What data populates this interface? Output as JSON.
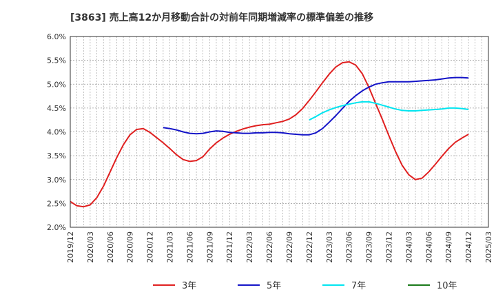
{
  "chart_data": {
    "type": "line",
    "title": "[3863]  売上高12か月移動合計の対前年同期増減率の標準偏差の推移",
    "xlabel": "",
    "ylabel": "",
    "ylim": [
      2.0,
      6.0
    ],
    "grid": true,
    "legend_position": "bottom",
    "y_ticks": [
      "2.0%",
      "2.5%",
      "3.0%",
      "3.5%",
      "4.0%",
      "4.5%",
      "5.0%",
      "5.5%",
      "6.0%"
    ],
    "x_ticks": [
      "2019/12",
      "2020/03",
      "2020/06",
      "2020/09",
      "2020/12",
      "2021/03",
      "2021/06",
      "2021/09",
      "2021/12",
      "2022/03",
      "2022/06",
      "2022/09",
      "2022/12",
      "2023/03",
      "2023/06",
      "2023/09",
      "2023/12",
      "2024/03",
      "2024/06",
      "2024/09",
      "2024/12",
      "2025/03"
    ],
    "series": [
      {
        "name": "3年",
        "color": "#e02020",
        "points": [
          [
            "2019/12",
            2.54
          ],
          [
            "2020/01",
            2.45
          ],
          [
            "2020/02",
            2.43
          ],
          [
            "2020/03",
            2.47
          ],
          [
            "2020/04",
            2.62
          ],
          [
            "2020/05",
            2.86
          ],
          [
            "2020/06",
            3.16
          ],
          [
            "2020/07",
            3.46
          ],
          [
            "2020/08",
            3.73
          ],
          [
            "2020/09",
            3.94
          ],
          [
            "2020/10",
            4.05
          ],
          [
            "2020/11",
            4.07
          ],
          [
            "2020/12",
            3.99
          ],
          [
            "2021/01",
            3.88
          ],
          [
            "2021/02",
            3.77
          ],
          [
            "2021/03",
            3.65
          ],
          [
            "2021/04",
            3.52
          ],
          [
            "2021/05",
            3.42
          ],
          [
            "2021/06",
            3.38
          ],
          [
            "2021/07",
            3.4
          ],
          [
            "2021/08",
            3.48
          ],
          [
            "2021/09",
            3.64
          ],
          [
            "2021/10",
            3.77
          ],
          [
            "2021/11",
            3.87
          ],
          [
            "2021/12",
            3.95
          ],
          [
            "2022/01",
            4.01
          ],
          [
            "2022/02",
            4.06
          ],
          [
            "2022/03",
            4.1
          ],
          [
            "2022/04",
            4.13
          ],
          [
            "2022/05",
            4.15
          ],
          [
            "2022/06",
            4.16
          ],
          [
            "2022/07",
            4.19
          ],
          [
            "2022/08",
            4.22
          ],
          [
            "2022/09",
            4.27
          ],
          [
            "2022/10",
            4.36
          ],
          [
            "2022/11",
            4.49
          ],
          [
            "2022/12",
            4.66
          ],
          [
            "2023/01",
            4.84
          ],
          [
            "2023/02",
            5.03
          ],
          [
            "2023/03",
            5.21
          ],
          [
            "2023/04",
            5.36
          ],
          [
            "2023/05",
            5.45
          ],
          [
            "2023/06",
            5.47
          ],
          [
            "2023/07",
            5.4
          ],
          [
            "2023/08",
            5.22
          ],
          [
            "2023/09",
            4.93
          ],
          [
            "2023/10",
            4.6
          ],
          [
            "2023/11",
            4.27
          ],
          [
            "2023/12",
            3.92
          ],
          [
            "2024/01",
            3.59
          ],
          [
            "2024/02",
            3.3
          ],
          [
            "2024/03",
            3.1
          ],
          [
            "2024/04",
            3.0
          ],
          [
            "2024/05",
            3.03
          ],
          [
            "2024/06",
            3.16
          ],
          [
            "2024/07",
            3.32
          ],
          [
            "2024/08",
            3.49
          ],
          [
            "2024/09",
            3.65
          ],
          [
            "2024/10",
            3.78
          ],
          [
            "2024/11",
            3.87
          ],
          [
            "2024/12",
            3.95
          ]
        ]
      },
      {
        "name": "5年",
        "color": "#1414c8",
        "points": [
          [
            "2021/02",
            4.09
          ],
          [
            "2021/03",
            4.07
          ],
          [
            "2021/04",
            4.04
          ],
          [
            "2021/05",
            4.0
          ],
          [
            "2021/06",
            3.97
          ],
          [
            "2021/07",
            3.96
          ],
          [
            "2021/08",
            3.97
          ],
          [
            "2021/09",
            4.0
          ],
          [
            "2021/10",
            4.02
          ],
          [
            "2021/11",
            4.01
          ],
          [
            "2021/12",
            3.99
          ],
          [
            "2022/01",
            3.98
          ],
          [
            "2022/02",
            3.97
          ],
          [
            "2022/03",
            3.97
          ],
          [
            "2022/04",
            3.98
          ],
          [
            "2022/05",
            3.98
          ],
          [
            "2022/06",
            3.99
          ],
          [
            "2022/07",
            3.99
          ],
          [
            "2022/08",
            3.98
          ],
          [
            "2022/09",
            3.96
          ],
          [
            "2022/10",
            3.95
          ],
          [
            "2022/11",
            3.94
          ],
          [
            "2022/12",
            3.94
          ],
          [
            "2023/01",
            3.98
          ],
          [
            "2023/02",
            4.07
          ],
          [
            "2023/03",
            4.2
          ],
          [
            "2023/04",
            4.34
          ],
          [
            "2023/05",
            4.49
          ],
          [
            "2023/06",
            4.64
          ],
          [
            "2023/07",
            4.76
          ],
          [
            "2023/08",
            4.86
          ],
          [
            "2023/09",
            4.94
          ],
          [
            "2023/10",
            5.0
          ],
          [
            "2023/11",
            5.03
          ],
          [
            "2023/12",
            5.05
          ],
          [
            "2024/01",
            5.05
          ],
          [
            "2024/02",
            5.05
          ],
          [
            "2024/03",
            5.05
          ],
          [
            "2024/04",
            5.06
          ],
          [
            "2024/05",
            5.07
          ],
          [
            "2024/06",
            5.08
          ],
          [
            "2024/07",
            5.09
          ],
          [
            "2024/08",
            5.11
          ],
          [
            "2024/09",
            5.13
          ],
          [
            "2024/10",
            5.14
          ],
          [
            "2024/11",
            5.14
          ],
          [
            "2024/12",
            5.13
          ]
        ]
      },
      {
        "name": "7年",
        "color": "#00e5f0",
        "points": [
          [
            "2022/12",
            4.25
          ],
          [
            "2023/01",
            4.32
          ],
          [
            "2023/02",
            4.4
          ],
          [
            "2023/03",
            4.46
          ],
          [
            "2023/04",
            4.51
          ],
          [
            "2023/05",
            4.55
          ],
          [
            "2023/06",
            4.58
          ],
          [
            "2023/07",
            4.61
          ],
          [
            "2023/08",
            4.63
          ],
          [
            "2023/09",
            4.63
          ],
          [
            "2023/10",
            4.6
          ],
          [
            "2023/11",
            4.56
          ],
          [
            "2023/12",
            4.52
          ],
          [
            "2024/01",
            4.48
          ],
          [
            "2024/02",
            4.45
          ],
          [
            "2024/03",
            4.44
          ],
          [
            "2024/04",
            4.44
          ],
          [
            "2024/05",
            4.45
          ],
          [
            "2024/06",
            4.46
          ],
          [
            "2024/07",
            4.47
          ],
          [
            "2024/08",
            4.48
          ],
          [
            "2024/09",
            4.5
          ],
          [
            "2024/10",
            4.5
          ],
          [
            "2024/11",
            4.49
          ],
          [
            "2024/12",
            4.47
          ]
        ]
      },
      {
        "name": "10年",
        "color": "#1a7a1a",
        "points": []
      }
    ]
  }
}
